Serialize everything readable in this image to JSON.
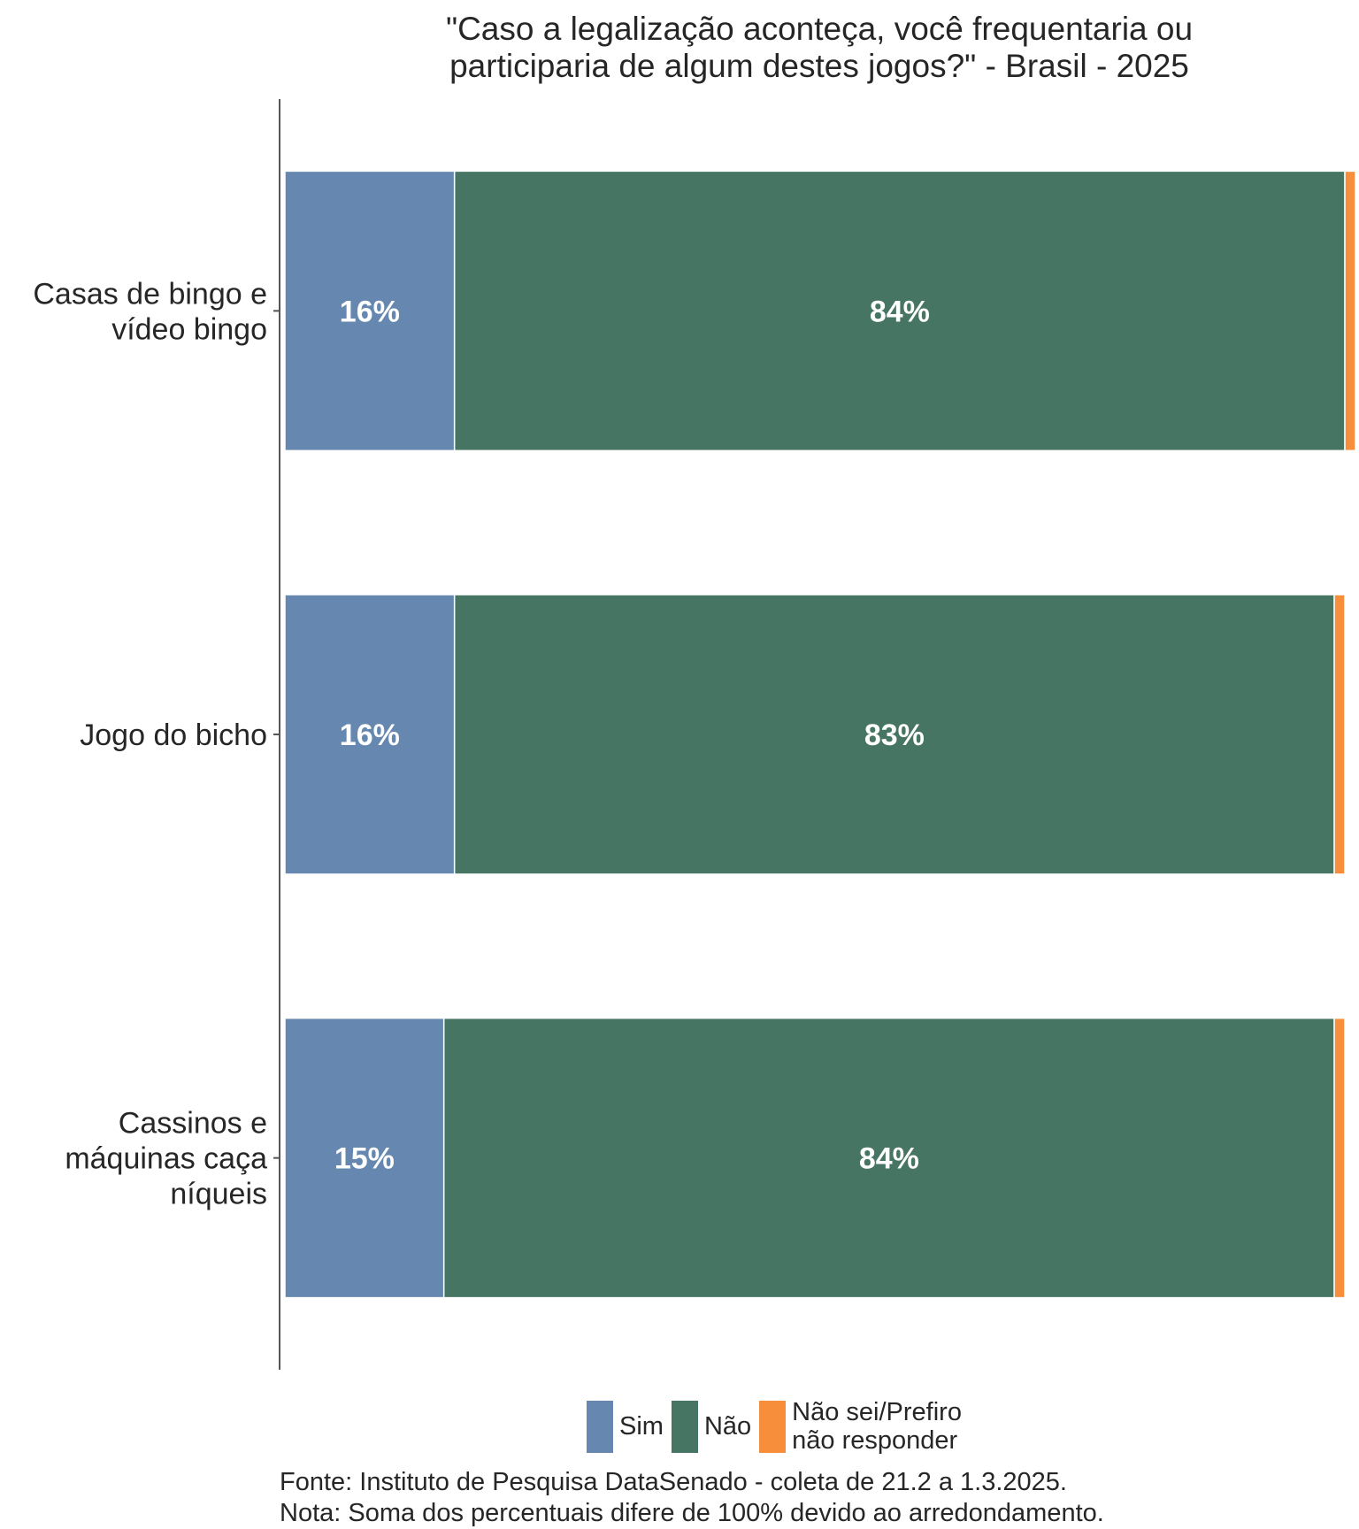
{
  "title_lines": [
    "\"Caso a legalização aconteça, você frequentaria ou",
    "participaria de algum destes jogos?\" - Brasil - 2025"
  ],
  "colors": {
    "Sim": "#6688b0",
    "Não": "#467563",
    "Não sei/Prefiro não responder": "#f78e3c",
    "text": "#262626",
    "axis": "#555555"
  },
  "legend": [
    {
      "name": "Sim",
      "label": "Sim",
      "color": "#6688b0"
    },
    {
      "name": "Não",
      "label": "Não",
      "color": "#467563"
    },
    {
      "name": "Não sei/Prefiro não responder",
      "label": "Não sei/Prefiro\nnão responder",
      "color": "#f78e3c"
    }
  ],
  "notes": {
    "source": "Fonte: Instituto de Pesquisa DataSenado - coleta de 21.2 a 1.3.2025.",
    "note": "Nota: Soma dos percentuais difere de 100% devido ao arredondamento."
  },
  "chart_data": {
    "type": "bar",
    "orientation": "horizontal",
    "stacked": true,
    "title": "\"Caso a legalização aconteça, você frequentaria ou participaria de algum destes jogos?\" - Brasil - 2025",
    "categories": [
      [
        "Casas de bingo e",
        "vídeo bingo"
      ],
      [
        "Jogo do bicho"
      ],
      [
        "Cassinos e",
        "máquinas caça",
        "níqueis"
      ]
    ],
    "series": [
      {
        "name": "Sim",
        "values": [
          16,
          16,
          15
        ],
        "labels": [
          "16%",
          "16%",
          "15%"
        ]
      },
      {
        "name": "Não",
        "values": [
          84,
          83,
          84
        ],
        "labels": [
          "84%",
          "83%",
          "84%"
        ]
      },
      {
        "name": "Não sei/Prefiro não responder",
        "values": [
          1,
          1,
          1
        ],
        "labels": [
          "",
          "",
          ""
        ]
      }
    ],
    "xlim": [
      0,
      101
    ],
    "legend_position": "bottom",
    "grid": false
  }
}
